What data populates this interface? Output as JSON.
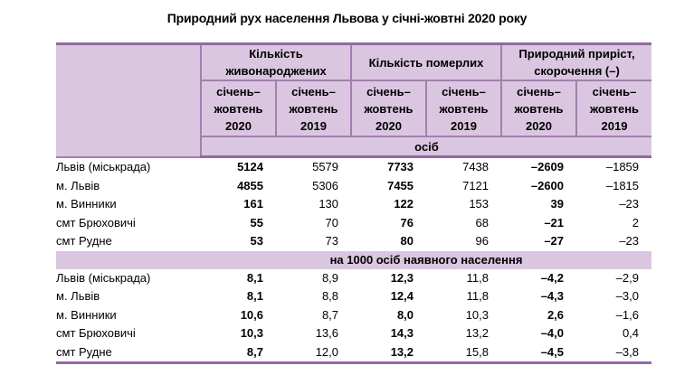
{
  "title": "Природний рух населення Львова у січні-жовтні 2020 року",
  "header": {
    "groups": [
      "Кількість живонароджених",
      "Кількість померлих",
      "Природний приріст, скорочення (–)"
    ],
    "periods": [
      [
        "січень–",
        "жовтень",
        "2020"
      ],
      [
        "січень–",
        "жовтень",
        "2019"
      ]
    ],
    "unit_row": "осіб"
  },
  "sections": [
    {
      "label": "осіб",
      "rows": [
        {
          "name": "Львів (міськрада)",
          "values": [
            "5124",
            "5579",
            "7733",
            "7438",
            "–2609",
            "–1859"
          ]
        },
        {
          "name": "м. Львів",
          "values": [
            "4855",
            "5306",
            "7455",
            "7121",
            "–2600",
            "–1815"
          ]
        },
        {
          "name": "м. Винники",
          "values": [
            "161",
            "130",
            "122",
            "153",
            "39",
            "–23"
          ]
        },
        {
          "name": "смт Брюховичі",
          "values": [
            "55",
            "70",
            "76",
            "68",
            "–21",
            "2"
          ]
        },
        {
          "name": "смт Рудне",
          "values": [
            "53",
            "73",
            "80",
            "96",
            "–27",
            "–23"
          ]
        }
      ]
    },
    {
      "label": "на 1000 осіб наявного населення",
      "rows": [
        {
          "name": "Львів (міськрада)",
          "values": [
            "8,1",
            "8,9",
            "12,3",
            "11,8",
            "–4,2",
            "–2,9"
          ]
        },
        {
          "name": "м. Львів",
          "values": [
            "8,1",
            "8,8",
            "12,4",
            "11,8",
            "–4,3",
            "–3,0"
          ]
        },
        {
          "name": "м. Винники",
          "values": [
            "10,6",
            "8,7",
            "8,0",
            "10,3",
            "2,6",
            "–1,6"
          ]
        },
        {
          "name": "смт Брюховичі",
          "values": [
            "10,3",
            "13,6",
            "14,3",
            "13,2",
            "–4,0",
            "0,4"
          ]
        },
        {
          "name": "смт Рудне",
          "values": [
            "8,7",
            "12,0",
            "13,2",
            "15,8",
            "–4,5",
            "–3,8"
          ]
        }
      ]
    }
  ],
  "colors": {
    "header_bg": "#dac6e0",
    "border": "#a57eb1",
    "rule": "#8f6aa0"
  }
}
